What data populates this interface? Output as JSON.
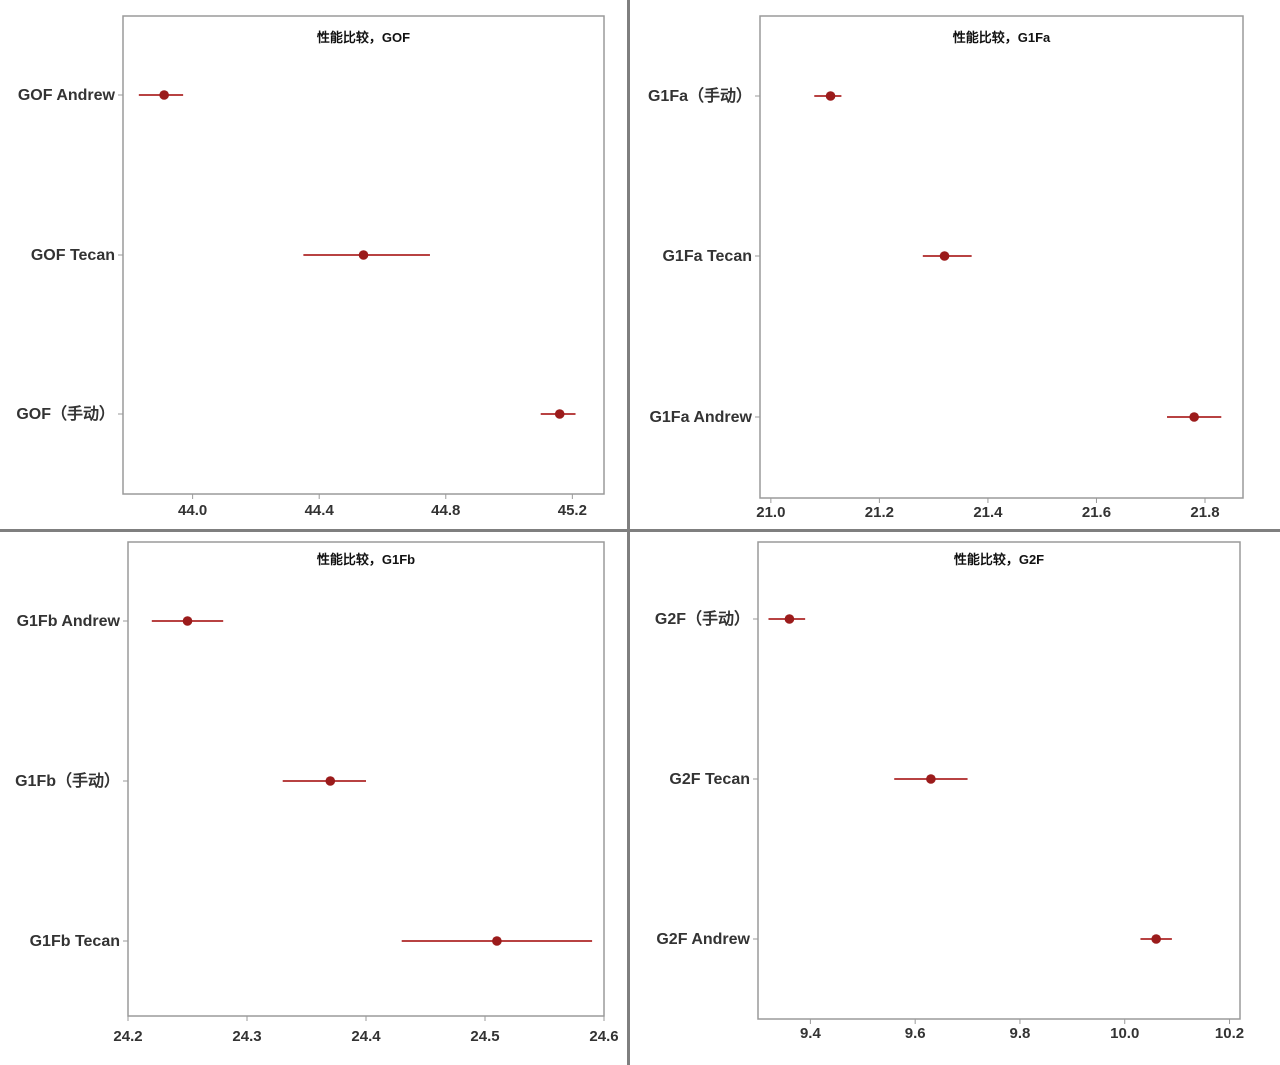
{
  "chart_data": [
    {
      "type": "interval",
      "title": "性能比较，GOF",
      "categories": [
        "GOF Andrew",
        "GOF Tecan",
        "GOF（手动）"
      ],
      "points": [
        {
          "category": "GOF Andrew",
          "mean": 43.91,
          "lower": 43.83,
          "upper": 43.97
        },
        {
          "category": "GOF Tecan",
          "mean": 44.54,
          "lower": 44.35,
          "upper": 44.75
        },
        {
          "category": "GOF（手动）",
          "mean": 45.16,
          "lower": 45.1,
          "upper": 45.21
        }
      ],
      "xlim": [
        43.78,
        45.3
      ],
      "xticks": [
        44.0,
        44.4,
        44.8,
        45.2
      ],
      "xtick_labels": [
        "44.0",
        "44.4",
        "44.8",
        "45.2"
      ],
      "grid": false,
      "colors": {
        "point": "#9b1b1b",
        "interval": "#b84242",
        "frame": "#9a9a9a"
      }
    },
    {
      "type": "interval",
      "title": "性能比较，G1Fa",
      "categories": [
        "G1Fa（手动）",
        "G1Fa Tecan",
        "G1Fa Andrew"
      ],
      "points": [
        {
          "category": "G1Fa（手动）",
          "mean": 21.11,
          "lower": 21.08,
          "upper": 21.13
        },
        {
          "category": "G1Fa Tecan",
          "mean": 21.32,
          "lower": 21.28,
          "upper": 21.37
        },
        {
          "category": "G1Fa Andrew",
          "mean": 21.78,
          "lower": 21.73,
          "upper": 21.83
        }
      ],
      "xlim": [
        20.98,
        21.87
      ],
      "xticks": [
        21.0,
        21.2,
        21.4,
        21.6,
        21.8
      ],
      "xtick_labels": [
        "21.0",
        "21.2",
        "21.4",
        "21.6",
        "21.8"
      ],
      "grid": false,
      "colors": {
        "point": "#9b1b1b",
        "interval": "#b84242",
        "frame": "#9a9a9a"
      }
    },
    {
      "type": "interval",
      "title": "性能比较，G1Fb",
      "categories": [
        "G1Fb Andrew",
        "G1Fb（手动）",
        "G1Fb Tecan"
      ],
      "points": [
        {
          "category": "G1Fb Andrew",
          "mean": 24.25,
          "lower": 24.22,
          "upper": 24.28
        },
        {
          "category": "G1Fb（手动）",
          "mean": 24.37,
          "lower": 24.33,
          "upper": 24.4
        },
        {
          "category": "G1Fb Tecan",
          "mean": 24.51,
          "lower": 24.43,
          "upper": 24.59
        }
      ],
      "xlim": [
        24.2,
        24.6
      ],
      "xticks": [
        24.2,
        24.3,
        24.4,
        24.5,
        24.6
      ],
      "xtick_labels": [
        "24.2",
        "24.3",
        "24.4",
        "24.5",
        "24.6"
      ],
      "grid": false,
      "colors": {
        "point": "#9b1b1b",
        "interval": "#b84242",
        "frame": "#9a9a9a"
      }
    },
    {
      "type": "interval",
      "title": "性能比较，G2F",
      "categories": [
        "G2F（手动）",
        "G2F Tecan",
        "G2F Andrew"
      ],
      "points": [
        {
          "category": "G2F（手动）",
          "mean": 9.36,
          "lower": 9.32,
          "upper": 9.39
        },
        {
          "category": "G2F Tecan",
          "mean": 9.63,
          "lower": 9.56,
          "upper": 9.7
        },
        {
          "category": "G2F Andrew",
          "mean": 10.06,
          "lower": 10.03,
          "upper": 10.09
        }
      ],
      "xlim": [
        9.3,
        10.22
      ],
      "xticks": [
        9.4,
        9.6,
        9.8,
        10.0,
        10.2
      ],
      "xtick_labels": [
        "9.4",
        "9.6",
        "9.8",
        "10.0",
        "10.2"
      ],
      "grid": false,
      "colors": {
        "point": "#9b1b1b",
        "interval": "#b84242",
        "frame": "#9a9a9a"
      }
    }
  ]
}
